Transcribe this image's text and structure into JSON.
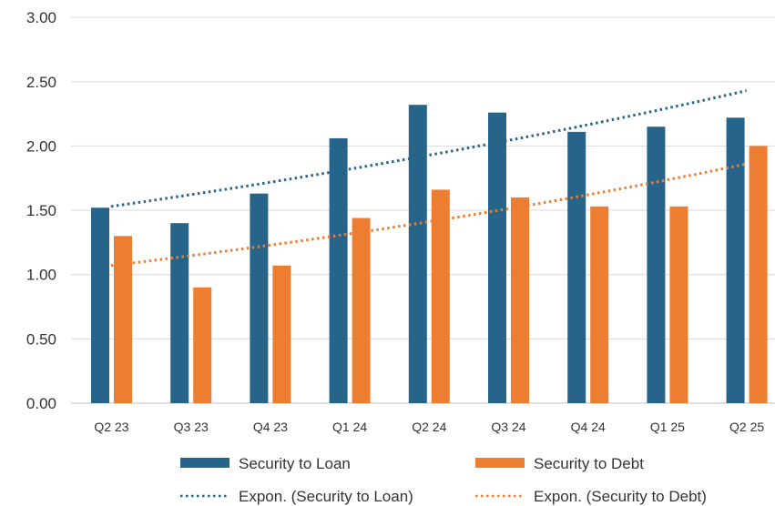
{
  "chart_data": {
    "type": "bar",
    "categories": [
      "Q2 23",
      "Q3 23",
      "Q4 23",
      "Q1 24",
      "Q2 24",
      "Q3 24",
      "Q4 24",
      "Q1 25",
      "Q2 25"
    ],
    "series": [
      {
        "name": "Security to Loan",
        "color": "#27648a",
        "values": [
          1.52,
          1.4,
          1.63,
          2.06,
          2.32,
          2.26,
          2.11,
          2.15,
          2.22
        ]
      },
      {
        "name": "Security to Debt",
        "color": "#ed7d31",
        "values": [
          1.3,
          0.9,
          1.07,
          1.44,
          1.66,
          1.6,
          1.53,
          1.53,
          2.0
        ]
      }
    ],
    "trendlines": [
      {
        "name": "Expon. (Security to Loan)",
        "color": "#27648a",
        "type": "exponential",
        "start": 1.53,
        "end": 2.43
      },
      {
        "name": "Expon. (Security to Debt)",
        "color": "#ed7d31",
        "type": "exponential",
        "start": 1.07,
        "end": 1.86
      }
    ],
    "yticks": [
      "0.00",
      "0.50",
      "1.00",
      "1.50",
      "2.00",
      "2.50",
      "3.00"
    ],
    "ylim": [
      0,
      3
    ],
    "grid": true,
    "legend": "bottom"
  }
}
